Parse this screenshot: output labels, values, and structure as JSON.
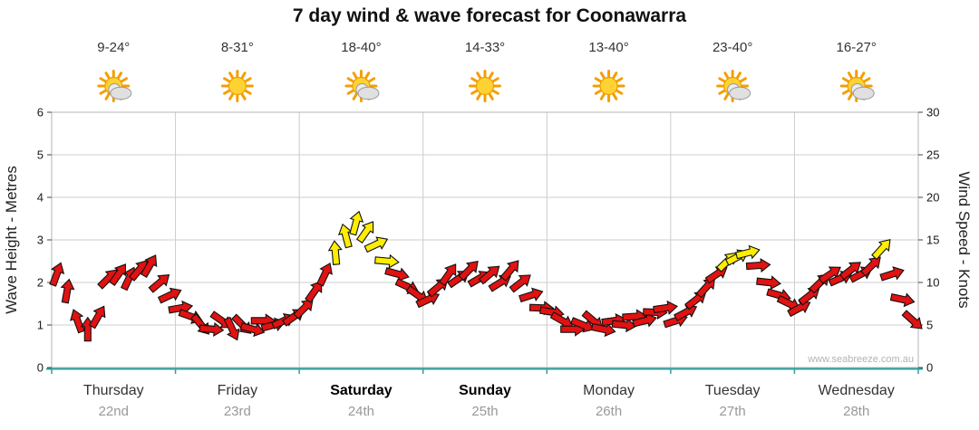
{
  "title": "7 day wind & wave forecast for Coonawarra",
  "watermark": "www.seabreeze.com.au",
  "axes": {
    "left_label": "Wave Height - Metres",
    "right_label": "Wind Speed - Knots",
    "left_ticks": [
      0,
      1,
      2,
      3,
      4,
      5,
      6
    ],
    "right_ticks": [
      0,
      5,
      10,
      15,
      20,
      25,
      30
    ]
  },
  "days": [
    {
      "name": "Thursday",
      "date": "22nd",
      "temps": "9-24°",
      "icon": "sun-cloud",
      "weekend": false
    },
    {
      "name": "Friday",
      "date": "23rd",
      "temps": "8-31°",
      "icon": "sun",
      "weekend": false
    },
    {
      "name": "Saturday",
      "date": "24th",
      "temps": "18-40°",
      "icon": "sun-cloud",
      "weekend": true
    },
    {
      "name": "Sunday",
      "date": "25th",
      "temps": "14-33°",
      "icon": "sun",
      "weekend": true
    },
    {
      "name": "Monday",
      "date": "26th",
      "temps": "13-40°",
      "icon": "sun",
      "weekend": false
    },
    {
      "name": "Tuesday",
      "date": "27th",
      "temps": "23-40°",
      "icon": "sun-cloud",
      "weekend": false
    },
    {
      "name": "Wednesday",
      "date": "28th",
      "temps": "16-27°",
      "icon": "sun-cloud",
      "weekend": false
    }
  ],
  "chart_data": {
    "type": "wind_arrow_series",
    "title": "7 day wind & wave forecast for Coonawarra",
    "ylabel_left": "Wave Height - Metres",
    "ylabel_right": "Wind Speed - Knots",
    "ylim_left_metres": [
      0,
      6
    ],
    "ylim_right_knots": [
      0,
      30
    ],
    "grid": true,
    "yellow_threshold_knots": 12.5,
    "points_per_day": 12,
    "wind_knots": [
      11,
      9,
      5.5,
      4.5,
      6,
      10.5,
      11,
      10.5,
      11.5,
      12,
      10,
      8.5,
      7,
      6,
      5,
      4.5,
      5.5,
      4.5,
      5,
      4.5,
      5.5,
      5,
      5.5,
      6,
      7,
      9,
      11,
      13.5,
      15.5,
      17,
      16,
      14.5,
      12.5,
      11,
      9.5,
      8.5,
      8,
      9.5,
      11,
      10.5,
      11.5,
      10.5,
      11,
      10,
      11.5,
      10,
      8.5,
      7,
      6.5,
      5.5,
      4.5,
      5,
      5.5,
      4.5,
      5.5,
      5,
      6,
      5.5,
      6.5,
      7,
      5.5,
      6.5,
      8,
      9.5,
      11,
      12.5,
      13,
      13.5,
      12,
      10,
      8.5,
      7.5,
      7,
      8.5,
      10,
      11,
      10.5,
      11.5,
      11,
      12,
      14,
      11,
      8,
      5.5
    ],
    "wind_dir_deg": [
      20,
      10,
      340,
      0,
      30,
      45,
      35,
      25,
      40,
      30,
      50,
      65,
      80,
      110,
      140,
      95,
      125,
      155,
      135,
      105,
      90,
      75,
      65,
      55,
      45,
      35,
      25,
      355,
      345,
      15,
      35,
      65,
      95,
      105,
      115,
      125,
      65,
      50,
      35,
      55,
      45,
      60,
      50,
      58,
      40,
      52,
      72,
      92,
      100,
      120,
      90,
      112,
      130,
      102,
      82,
      96,
      86,
      76,
      92,
      82,
      72,
      62,
      52,
      42,
      56,
      46,
      62,
      76,
      86,
      96,
      106,
      116,
      62,
      52,
      46,
      56,
      66,
      52,
      62,
      46,
      42,
      72,
      102,
      132
    ]
  },
  "colors": {
    "arrow_red": "#e01212",
    "arrow_yellow": "#ffee00",
    "arrow_outline": "#111111",
    "axis_teal": "#2fa0a0",
    "grid": "#cccccc",
    "border": "#b5b5b5",
    "tick_text": "#1a1a1a",
    "day_text": "#333333",
    "weekend_text": "#000000",
    "date_text": "#999999",
    "temp_text": "#333333",
    "watermark_text": "#b3b3b3"
  }
}
